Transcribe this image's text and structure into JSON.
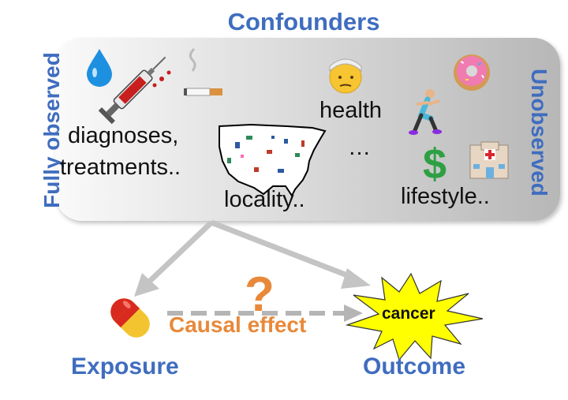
{
  "title": "Confounders",
  "side_labels": {
    "left": "Fully observed",
    "right": "Unobserved"
  },
  "confounder_labels": {
    "diagnoses": "diagnoses,",
    "treatments": "treatments..",
    "locality": "locality..",
    "health": "health",
    "ellipsis": "…",
    "lifestyle": "lifestyle.."
  },
  "icons": [
    "droplet-icon",
    "syringe-icon",
    "cigarette-icon",
    "injured-face-icon",
    "donut-icon",
    "runner-icon",
    "dollar-icon",
    "hospital-icon",
    "us-map-icon",
    "pill-icon"
  ],
  "nodes": {
    "exposure": "Exposure",
    "outcome": "Outcome",
    "outcome_value": "cancer"
  },
  "edge": {
    "causal_label": "Causal effect",
    "unknown_mark": "?"
  },
  "colors": {
    "title_blue": "#3f6dbf",
    "causal_orange": "#e8893a",
    "burst_yellow": "#ffff00",
    "arrow_gray": "#c4c4c4"
  }
}
